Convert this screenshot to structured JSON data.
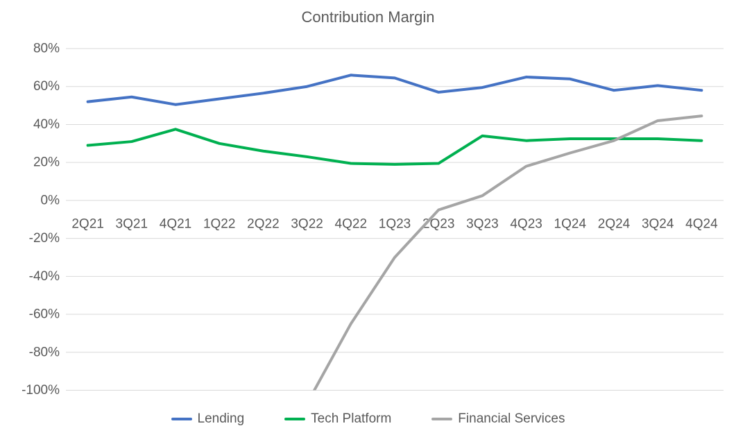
{
  "chart_data": {
    "type": "line",
    "title": "Contribution Margin",
    "categories": [
      "2Q21",
      "3Q21",
      "4Q21",
      "1Q22",
      "2Q22",
      "3Q22",
      "4Q22",
      "1Q23",
      "2Q23",
      "3Q23",
      "4Q23",
      "1Q24",
      "2Q24",
      "3Q24",
      "4Q24"
    ],
    "series": [
      {
        "name": "Lending",
        "color": "#4472C4",
        "values": [
          52,
          54.5,
          50.5,
          53.5,
          56.5,
          60,
          66,
          64.5,
          57,
          59.5,
          65,
          64,
          58,
          60.5,
          58
        ]
      },
      {
        "name": "Tech Platform",
        "color": "#00B050",
        "values": [
          29,
          31,
          37.5,
          30,
          26,
          23,
          19.5,
          19,
          19.5,
          34,
          31.5,
          32.5,
          32.5,
          32.5,
          31.5
        ]
      },
      {
        "name": "Financial Services",
        "color": "#A5A5A5",
        "values": [
          null,
          null,
          null,
          null,
          null,
          -107,
          -65,
          -30,
          -5,
          2.5,
          18,
          25,
          31.5,
          42,
          44.5
        ]
      }
    ],
    "ylim": [
      -100,
      80
    ],
    "y_tick_step": 20,
    "y_tick_labels": [
      "80%",
      "60%",
      "40%",
      "20%",
      "0%",
      "-20%",
      "-40%",
      "-60%",
      "-80%",
      "-100%"
    ],
    "y_tick_format": "percent",
    "grid": true,
    "legend_position": "bottom",
    "colors": {
      "text": "#595959",
      "gridline": "#D9D9D9",
      "background": "#FFFFFF"
    }
  }
}
